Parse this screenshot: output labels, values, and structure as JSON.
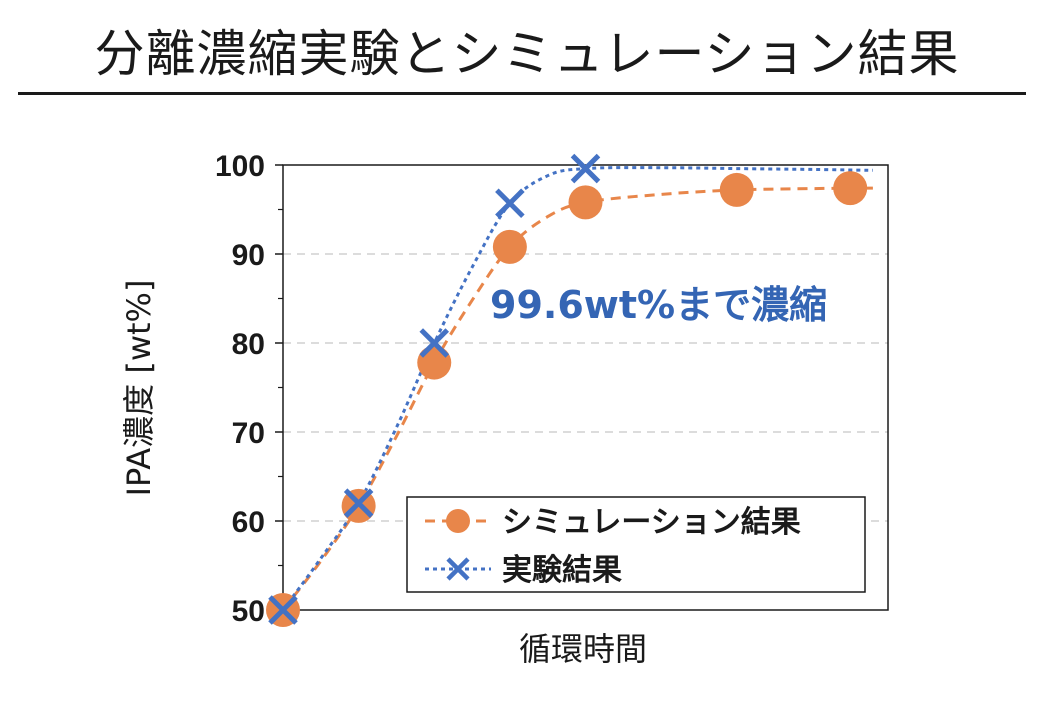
{
  "page": {
    "title": "分離濃縮実験とシミュレーション結果"
  },
  "chart_data": {
    "type": "line",
    "title": "",
    "xlabel": "循環時間",
    "ylabel": "IPA濃度 [wt%]",
    "ylim": [
      50,
      100
    ],
    "y_ticks": [
      50,
      60,
      70,
      80,
      90,
      100
    ],
    "x_range": [
      0,
      8
    ],
    "grid": "horizontal-dashed",
    "legend": {
      "placement": "bottom-right"
    },
    "annotation": "99.6wt%まで濃縮",
    "series": [
      {
        "name": "シミュレーション結果",
        "color": "#e8864a",
        "marker": "circle",
        "line_style": "dashed",
        "points": [
          {
            "x": 0,
            "y": 50
          },
          {
            "x": 1,
            "y": 61.7
          },
          {
            "x": 2,
            "y": 77.8
          },
          {
            "x": 3,
            "y": 90.8
          },
          {
            "x": 4,
            "y": 95.8
          },
          {
            "x": 6,
            "y": 97.2
          },
          {
            "x": 7.5,
            "y": 97.4
          }
        ],
        "curve": [
          [
            0,
            50
          ],
          [
            0.5,
            55.5
          ],
          [
            1,
            61.7
          ],
          [
            1.5,
            69.5
          ],
          [
            2,
            77.8
          ],
          [
            2.5,
            84.8
          ],
          [
            3,
            90.8
          ],
          [
            3.5,
            94.2
          ],
          [
            4,
            95.8
          ],
          [
            5,
            96.7
          ],
          [
            6,
            97.2
          ],
          [
            7,
            97.35
          ],
          [
            7.5,
            97.4
          ],
          [
            7.8,
            97.4
          ]
        ]
      },
      {
        "name": "実験結果",
        "color": "#4472c4",
        "marker": "x",
        "line_style": "dotted",
        "points": [
          {
            "x": 0,
            "y": 50
          },
          {
            "x": 1,
            "y": 62
          },
          {
            "x": 2,
            "y": 80
          },
          {
            "x": 3,
            "y": 95.7
          },
          {
            "x": 4,
            "y": 99.6
          }
        ],
        "curve": [
          [
            0,
            50
          ],
          [
            0.5,
            55.8
          ],
          [
            1,
            62
          ],
          [
            1.5,
            70.5
          ],
          [
            2,
            80
          ],
          [
            2.5,
            88.5
          ],
          [
            3,
            95.7
          ],
          [
            3.5,
            98.8
          ],
          [
            4,
            99.6
          ],
          [
            5,
            99.7
          ],
          [
            6,
            99.6
          ],
          [
            7,
            99.5
          ],
          [
            7.8,
            99.4
          ]
        ]
      }
    ]
  }
}
